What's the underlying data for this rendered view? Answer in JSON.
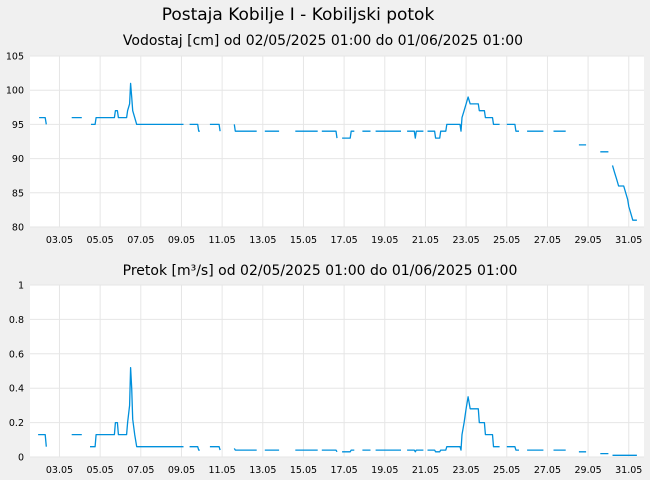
{
  "figure": {
    "title": "Postaja Kobilje I - Kobiljski potok"
  },
  "chart_data": [
    {
      "type": "line",
      "title": "Vodostaj [cm] od 02/05/2025 01:00 do 01/06/2025 01:00",
      "xlabel": "",
      "ylabel": "",
      "x_ticks": [
        "03.05",
        "05.05",
        "07.05",
        "09.05",
        "11.05",
        "13.05",
        "15.05",
        "17.05",
        "19.05",
        "21.05",
        "23.05",
        "25.05",
        "27.05",
        "29.05",
        "31.05"
      ],
      "y_ticks": [
        "80",
        "85",
        "90",
        "95",
        "100",
        "105"
      ],
      "ylim": [
        80,
        105
      ],
      "xlim_days": [
        1.55,
        31.75
      ],
      "grid": true,
      "color": "#0090dc",
      "series": [
        {
          "points": [
            [
              2.0,
              96
            ],
            [
              2.3,
              96
            ],
            [
              2.35,
              95
            ],
            [
              null,
              null
            ],
            [
              3.6,
              96
            ],
            [
              4.1,
              96
            ],
            [
              null,
              null
            ],
            [
              4.55,
              95
            ],
            [
              4.75,
              95
            ],
            [
              4.8,
              96
            ],
            [
              5.7,
              96
            ],
            [
              5.75,
              97
            ],
            [
              5.85,
              97
            ],
            [
              5.9,
              96
            ],
            [
              6.3,
              96
            ],
            [
              6.35,
              97
            ],
            [
              6.45,
              98
            ],
            [
              6.5,
              101
            ],
            [
              6.55,
              99
            ],
            [
              6.6,
              97
            ],
            [
              6.7,
              96
            ],
            [
              6.8,
              95
            ],
            [
              9.1,
              95
            ],
            [
              null,
              null
            ],
            [
              9.4,
              95
            ],
            [
              9.8,
              95
            ],
            [
              9.85,
              94
            ],
            [
              9.9,
              94
            ],
            [
              null,
              null
            ],
            [
              10.4,
              95
            ],
            [
              10.85,
              95
            ],
            [
              10.9,
              94
            ],
            [
              null,
              null
            ],
            [
              11.6,
              95
            ],
            [
              11.65,
              94
            ],
            [
              12.7,
              94
            ],
            [
              null,
              null
            ],
            [
              13.1,
              94
            ],
            [
              13.8,
              94
            ],
            [
              null,
              null
            ],
            [
              14.6,
              94
            ],
            [
              15.7,
              94
            ],
            [
              null,
              null
            ],
            [
              15.9,
              94
            ],
            [
              16.6,
              94
            ],
            [
              16.65,
              93
            ],
            [
              null,
              null
            ],
            [
              16.9,
              93
            ],
            [
              17.3,
              93
            ],
            [
              17.35,
              94
            ],
            [
              17.5,
              94
            ],
            [
              null,
              null
            ],
            [
              17.9,
              94
            ],
            [
              18.3,
              94
            ],
            [
              null,
              null
            ],
            [
              18.55,
              94
            ],
            [
              19.8,
              94
            ],
            [
              null,
              null
            ],
            [
              20.1,
              94
            ],
            [
              20.45,
              94
            ],
            [
              20.5,
              93
            ],
            [
              20.55,
              94
            ],
            [
              20.9,
              94
            ],
            [
              null,
              null
            ],
            [
              21.1,
              94
            ],
            [
              21.45,
              94
            ],
            [
              21.5,
              93
            ],
            [
              21.7,
              93
            ],
            [
              21.75,
              94
            ],
            [
              22.0,
              94
            ],
            [
              22.05,
              95
            ],
            [
              22.7,
              95
            ],
            [
              22.75,
              94
            ],
            [
              22.8,
              96
            ],
            [
              22.9,
              97
            ],
            [
              23.0,
              98
            ],
            [
              23.1,
              99
            ],
            [
              23.2,
              98
            ],
            [
              23.6,
              98
            ],
            [
              23.65,
              97
            ],
            [
              23.9,
              97
            ],
            [
              23.95,
              96
            ],
            [
              24.3,
              96
            ],
            [
              24.35,
              95
            ],
            [
              24.65,
              95
            ],
            [
              null,
              null
            ],
            [
              25.0,
              95
            ],
            [
              25.4,
              95
            ],
            [
              25.45,
              94
            ],
            [
              25.6,
              94
            ],
            [
              null,
              null
            ],
            [
              26.0,
              94
            ],
            [
              26.8,
              94
            ],
            [
              null,
              null
            ],
            [
              27.3,
              94
            ],
            [
              27.9,
              94
            ],
            [
              null,
              null
            ],
            [
              28.55,
              92
            ],
            [
              28.9,
              92
            ],
            [
              null,
              null
            ],
            [
              29.6,
              91
            ],
            [
              30.0,
              91
            ],
            [
              null,
              null
            ],
            [
              30.2,
              89
            ],
            [
              30.3,
              88
            ],
            [
              30.4,
              87
            ],
            [
              30.5,
              86
            ],
            [
              30.6,
              86
            ],
            [
              30.75,
              86
            ],
            [
              30.85,
              85
            ],
            [
              30.95,
              84
            ],
            [
              31.0,
              83
            ],
            [
              31.1,
              82
            ],
            [
              31.2,
              81
            ],
            [
              31.4,
              81
            ]
          ]
        }
      ]
    },
    {
      "type": "line",
      "title": "Pretok [m³/s] od 02/05/2025 01:00 do 01/06/2025 01:00",
      "xlabel": "",
      "ylabel": "",
      "x_ticks": [
        "03.05",
        "05.05",
        "07.05",
        "09.05",
        "11.05",
        "13.05",
        "15.05",
        "17.05",
        "19.05",
        "21.05",
        "23.05",
        "25.05",
        "27.05",
        "29.05",
        "31.05"
      ],
      "y_ticks": [
        "0",
        "0.2",
        "0.4",
        "0.6",
        "0.8",
        "1"
      ],
      "ylim": [
        0,
        1
      ],
      "xlim_days": [
        1.55,
        31.75
      ],
      "grid": true,
      "color": "#0090dc",
      "series": [
        {
          "points": [
            [
              1.95,
              0.13
            ],
            [
              2.3,
              0.13
            ],
            [
              2.35,
              0.06
            ],
            [
              null,
              null
            ],
            [
              3.6,
              0.13
            ],
            [
              4.1,
              0.13
            ],
            [
              null,
              null
            ],
            [
              4.5,
              0.06
            ],
            [
              4.75,
              0.06
            ],
            [
              4.8,
              0.13
            ],
            [
              5.7,
              0.13
            ],
            [
              5.75,
              0.2
            ],
            [
              5.85,
              0.2
            ],
            [
              5.9,
              0.13
            ],
            [
              6.3,
              0.13
            ],
            [
              6.35,
              0.2
            ],
            [
              6.45,
              0.3
            ],
            [
              6.5,
              0.52
            ],
            [
              6.55,
              0.4
            ],
            [
              6.6,
              0.22
            ],
            [
              6.7,
              0.13
            ],
            [
              6.8,
              0.06
            ],
            [
              9.1,
              0.06
            ],
            [
              null,
              null
            ],
            [
              9.4,
              0.06
            ],
            [
              9.8,
              0.06
            ],
            [
              9.85,
              0.04
            ],
            [
              9.9,
              0.04
            ],
            [
              null,
              null
            ],
            [
              10.4,
              0.06
            ],
            [
              10.85,
              0.06
            ],
            [
              10.9,
              0.04
            ],
            [
              null,
              null
            ],
            [
              11.6,
              0.05
            ],
            [
              11.65,
              0.04
            ],
            [
              12.7,
              0.04
            ],
            [
              null,
              null
            ],
            [
              13.1,
              0.04
            ],
            [
              13.8,
              0.04
            ],
            [
              null,
              null
            ],
            [
              14.6,
              0.04
            ],
            [
              15.7,
              0.04
            ],
            [
              null,
              null
            ],
            [
              15.9,
              0.04
            ],
            [
              16.6,
              0.04
            ],
            [
              16.65,
              0.03
            ],
            [
              null,
              null
            ],
            [
              16.9,
              0.03
            ],
            [
              17.3,
              0.03
            ],
            [
              17.35,
              0.04
            ],
            [
              17.5,
              0.04
            ],
            [
              null,
              null
            ],
            [
              17.9,
              0.04
            ],
            [
              18.3,
              0.04
            ],
            [
              null,
              null
            ],
            [
              18.55,
              0.04
            ],
            [
              19.8,
              0.04
            ],
            [
              null,
              null
            ],
            [
              20.1,
              0.04
            ],
            [
              20.45,
              0.04
            ],
            [
              20.5,
              0.03
            ],
            [
              20.55,
              0.04
            ],
            [
              20.9,
              0.04
            ],
            [
              null,
              null
            ],
            [
              21.1,
              0.04
            ],
            [
              21.45,
              0.04
            ],
            [
              21.5,
              0.03
            ],
            [
              21.7,
              0.03
            ],
            [
              21.75,
              0.04
            ],
            [
              22.0,
              0.04
            ],
            [
              22.05,
              0.06
            ],
            [
              22.7,
              0.06
            ],
            [
              22.75,
              0.04
            ],
            [
              22.8,
              0.13
            ],
            [
              22.9,
              0.2
            ],
            [
              23.0,
              0.28
            ],
            [
              23.1,
              0.35
            ],
            [
              23.2,
              0.28
            ],
            [
              23.6,
              0.28
            ],
            [
              23.65,
              0.2
            ],
            [
              23.9,
              0.2
            ],
            [
              23.95,
              0.13
            ],
            [
              24.3,
              0.13
            ],
            [
              24.35,
              0.06
            ],
            [
              24.65,
              0.06
            ],
            [
              null,
              null
            ],
            [
              25.0,
              0.06
            ],
            [
              25.4,
              0.06
            ],
            [
              25.45,
              0.04
            ],
            [
              25.6,
              0.04
            ],
            [
              null,
              null
            ],
            [
              26.0,
              0.04
            ],
            [
              26.8,
              0.04
            ],
            [
              null,
              null
            ],
            [
              27.3,
              0.04
            ],
            [
              27.9,
              0.04
            ],
            [
              null,
              null
            ],
            [
              28.55,
              0.03
            ],
            [
              28.9,
              0.03
            ],
            [
              null,
              null
            ],
            [
              29.6,
              0.02
            ],
            [
              30.0,
              0.02
            ],
            [
              null,
              null
            ],
            [
              30.2,
              0.01
            ],
            [
              31.4,
              0.01
            ]
          ]
        }
      ]
    }
  ]
}
